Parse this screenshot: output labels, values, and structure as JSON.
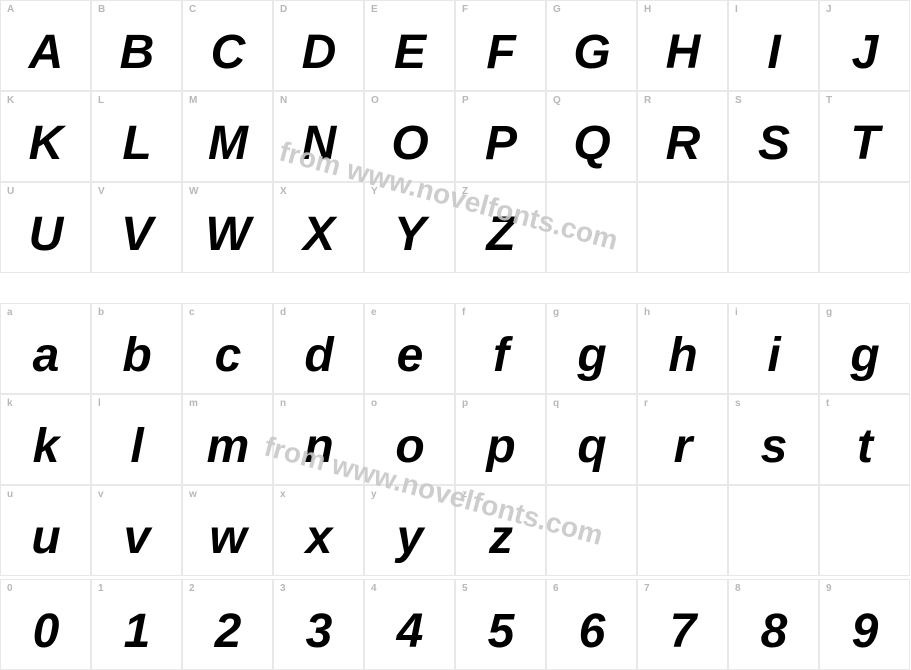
{
  "watermark_text": "from www.novelfonts.com",
  "font_specimen": {
    "style": "bold-italic",
    "glyph_color": "#000000",
    "label_color": "#b8b8b8",
    "border_color": "#e8e8e8",
    "background_color": "#ffffff",
    "glyph_fontsize": 48,
    "label_fontsize": 10,
    "cell_size": 91,
    "columns": 10
  },
  "rows": [
    {
      "section": "upper",
      "cells": [
        {
          "label": "A",
          "glyph": "A"
        },
        {
          "label": "B",
          "glyph": "B"
        },
        {
          "label": "C",
          "glyph": "C"
        },
        {
          "label": "D",
          "glyph": "D"
        },
        {
          "label": "E",
          "glyph": "E"
        },
        {
          "label": "F",
          "glyph": "F"
        },
        {
          "label": "G",
          "glyph": "G"
        },
        {
          "label": "H",
          "glyph": "H"
        },
        {
          "label": "I",
          "glyph": "I"
        },
        {
          "label": "J",
          "glyph": "J"
        }
      ]
    },
    {
      "section": "upper",
      "cells": [
        {
          "label": "K",
          "glyph": "K"
        },
        {
          "label": "L",
          "glyph": "L"
        },
        {
          "label": "M",
          "glyph": "M"
        },
        {
          "label": "N",
          "glyph": "N"
        },
        {
          "label": "O",
          "glyph": "O"
        },
        {
          "label": "P",
          "glyph": "P"
        },
        {
          "label": "Q",
          "glyph": "Q"
        },
        {
          "label": "R",
          "glyph": "R"
        },
        {
          "label": "S",
          "glyph": "S"
        },
        {
          "label": "T",
          "glyph": "T"
        }
      ]
    },
    {
      "section": "upper",
      "cells": [
        {
          "label": "U",
          "glyph": "U"
        },
        {
          "label": "V",
          "glyph": "V"
        },
        {
          "label": "W",
          "glyph": "W"
        },
        {
          "label": "X",
          "glyph": "X"
        },
        {
          "label": "Y",
          "glyph": "Y"
        },
        {
          "label": "Z",
          "glyph": "Z"
        },
        {
          "label": "",
          "glyph": ""
        },
        {
          "label": "",
          "glyph": ""
        },
        {
          "label": "",
          "glyph": ""
        },
        {
          "label": "",
          "glyph": ""
        }
      ]
    },
    {
      "section": "lower",
      "cells": [
        {
          "label": "a",
          "glyph": "a"
        },
        {
          "label": "b",
          "glyph": "b"
        },
        {
          "label": "c",
          "glyph": "c"
        },
        {
          "label": "d",
          "glyph": "d"
        },
        {
          "label": "e",
          "glyph": "e"
        },
        {
          "label": "f",
          "glyph": "f"
        },
        {
          "label": "g",
          "glyph": "g"
        },
        {
          "label": "h",
          "glyph": "h"
        },
        {
          "label": "i",
          "glyph": "i"
        },
        {
          "label": "g",
          "glyph": "g"
        }
      ]
    },
    {
      "section": "lower",
      "cells": [
        {
          "label": "k",
          "glyph": "k"
        },
        {
          "label": "l",
          "glyph": "l"
        },
        {
          "label": "m",
          "glyph": "m"
        },
        {
          "label": "n",
          "glyph": "n"
        },
        {
          "label": "o",
          "glyph": "o"
        },
        {
          "label": "p",
          "glyph": "p"
        },
        {
          "label": "q",
          "glyph": "q"
        },
        {
          "label": "r",
          "glyph": "r"
        },
        {
          "label": "s",
          "glyph": "s"
        },
        {
          "label": "t",
          "glyph": "t"
        }
      ]
    },
    {
      "section": "lower",
      "cells": [
        {
          "label": "u",
          "glyph": "u"
        },
        {
          "label": "v",
          "glyph": "v"
        },
        {
          "label": "w",
          "glyph": "w"
        },
        {
          "label": "x",
          "glyph": "x"
        },
        {
          "label": "y",
          "glyph": "y"
        },
        {
          "label": "z",
          "glyph": "z"
        },
        {
          "label": "",
          "glyph": ""
        },
        {
          "label": "",
          "glyph": ""
        },
        {
          "label": "",
          "glyph": ""
        },
        {
          "label": "",
          "glyph": ""
        }
      ]
    },
    {
      "section": "digits",
      "cells": [
        {
          "label": "0",
          "glyph": "0"
        },
        {
          "label": "1",
          "glyph": "1"
        },
        {
          "label": "2",
          "glyph": "2"
        },
        {
          "label": "3",
          "glyph": "3"
        },
        {
          "label": "4",
          "glyph": "4"
        },
        {
          "label": "5",
          "glyph": "5"
        },
        {
          "label": "6",
          "glyph": "6"
        },
        {
          "label": "7",
          "glyph": "7"
        },
        {
          "label": "8",
          "glyph": "8"
        },
        {
          "label": "9",
          "glyph": "9"
        }
      ]
    }
  ]
}
